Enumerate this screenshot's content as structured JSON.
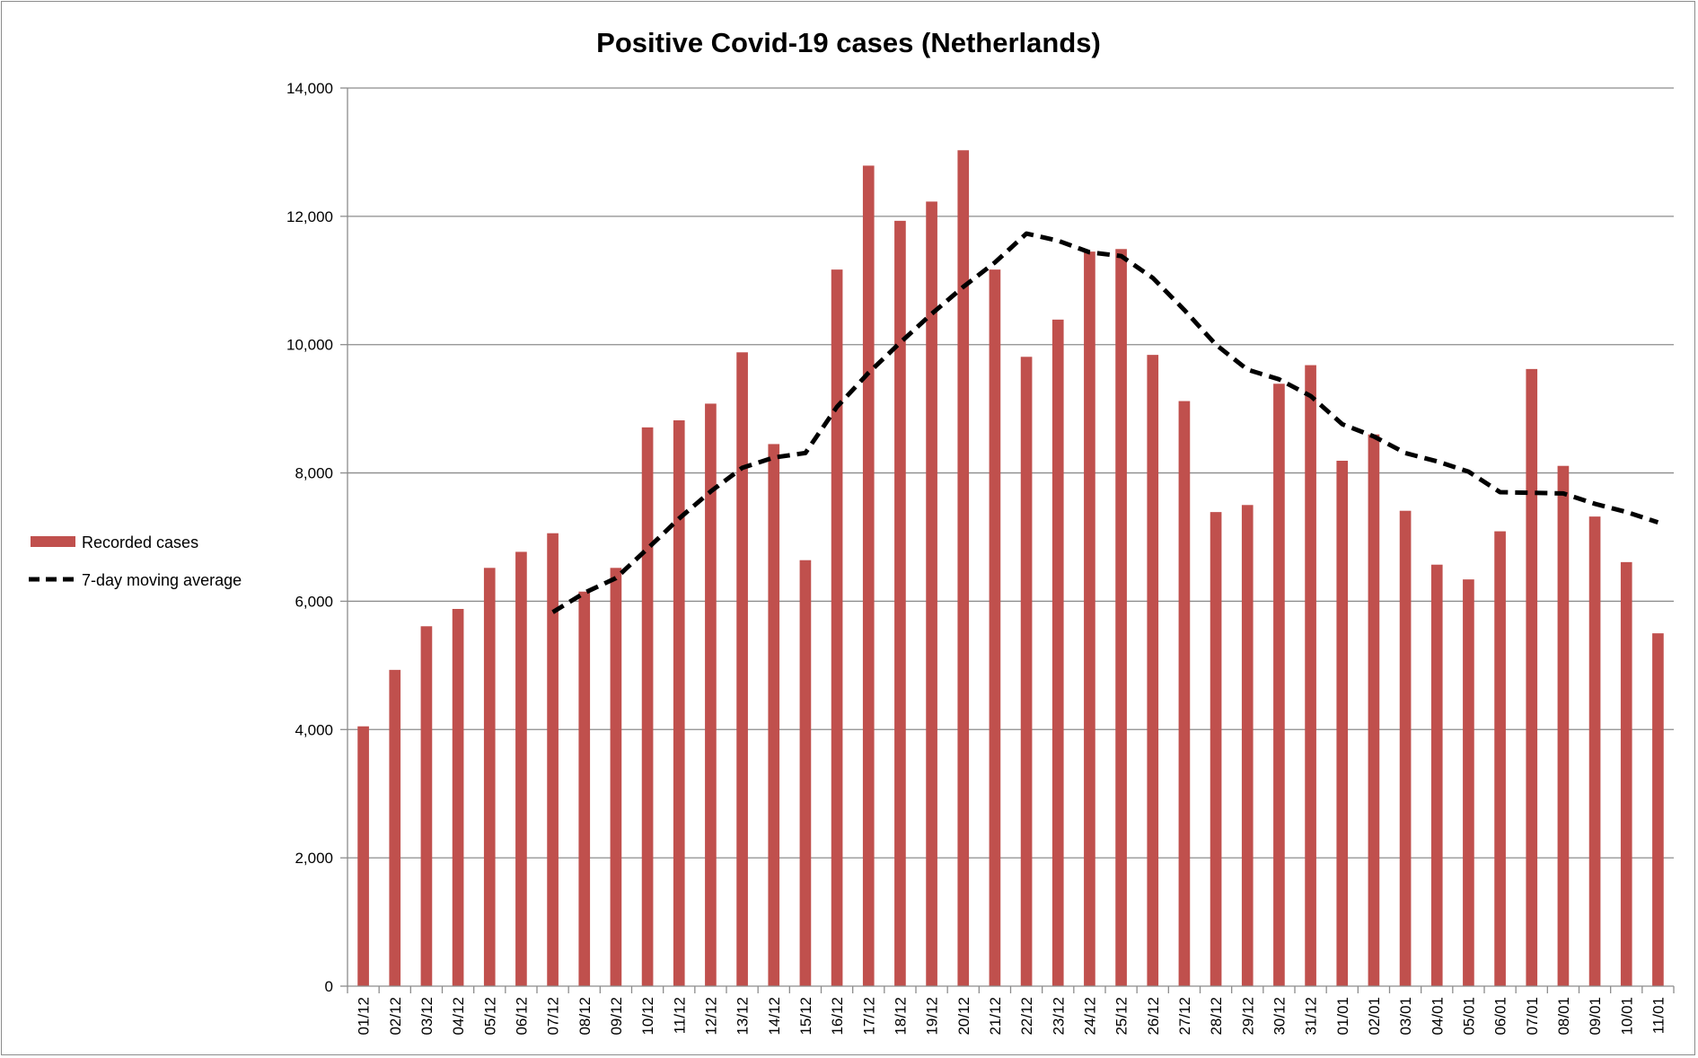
{
  "chart_data": {
    "type": "bar",
    "title": "Positive Covid-19 cases (Netherlands)",
    "xlabel": "",
    "ylabel": "",
    "ylim": [
      0,
      14000
    ],
    "yticks": [
      0,
      2000,
      4000,
      6000,
      8000,
      10000,
      12000,
      14000
    ],
    "ytick_labels": [
      "0",
      "2,000",
      "4,000",
      "6,000",
      "8,000",
      "10,000",
      "12,000",
      "14,000"
    ],
    "grid": "horizontal",
    "legend_position": "left",
    "categories": [
      "01/12",
      "02/12",
      "03/12",
      "04/12",
      "05/12",
      "06/12",
      "07/12",
      "08/12",
      "09/12",
      "10/12",
      "11/12",
      "12/12",
      "13/12",
      "14/12",
      "15/12",
      "16/12",
      "17/12",
      "18/12",
      "19/12",
      "20/12",
      "21/12",
      "22/12",
      "23/12",
      "24/12",
      "25/12",
      "26/12",
      "27/12",
      "28/12",
      "29/12",
      "30/12",
      "31/12",
      "01/01",
      "02/01",
      "03/01",
      "04/01",
      "05/01",
      "06/01",
      "07/01",
      "08/01",
      "09/01",
      "10/01",
      "11/01"
    ],
    "series": [
      {
        "name": "Recorded cases",
        "type": "bar",
        "color": "#c0504d",
        "values": [
          4050,
          4930,
          5610,
          5880,
          6520,
          6770,
          7060,
          6150,
          6520,
          8710,
          8820,
          9080,
          9880,
          8450,
          6640,
          11170,
          12790,
          11930,
          12230,
          13030,
          11170,
          9810,
          10390,
          11450,
          11490,
          9840,
          9120,
          7390,
          7500,
          9390,
          9680,
          8190,
          8600,
          7410,
          6570,
          6340,
          7090,
          9620,
          8110,
          7320,
          6610,
          5500
        ]
      },
      {
        "name": "7-day moving average",
        "type": "line",
        "style": "dashed",
        "color": "#000000",
        "values": [
          null,
          null,
          null,
          null,
          null,
          null,
          5830,
          6130,
          6360,
          6820,
          7290,
          7710,
          8080,
          8240,
          8310,
          9030,
          9560,
          10030,
          10480,
          10900,
          11280,
          11730,
          11620,
          11440,
          11380,
          11040,
          10540,
          10000,
          9610,
          9460,
          9200,
          8760,
          8570,
          8310,
          8180,
          8020,
          7700,
          7690,
          7680,
          7520,
          7390,
          7230
        ]
      }
    ]
  }
}
